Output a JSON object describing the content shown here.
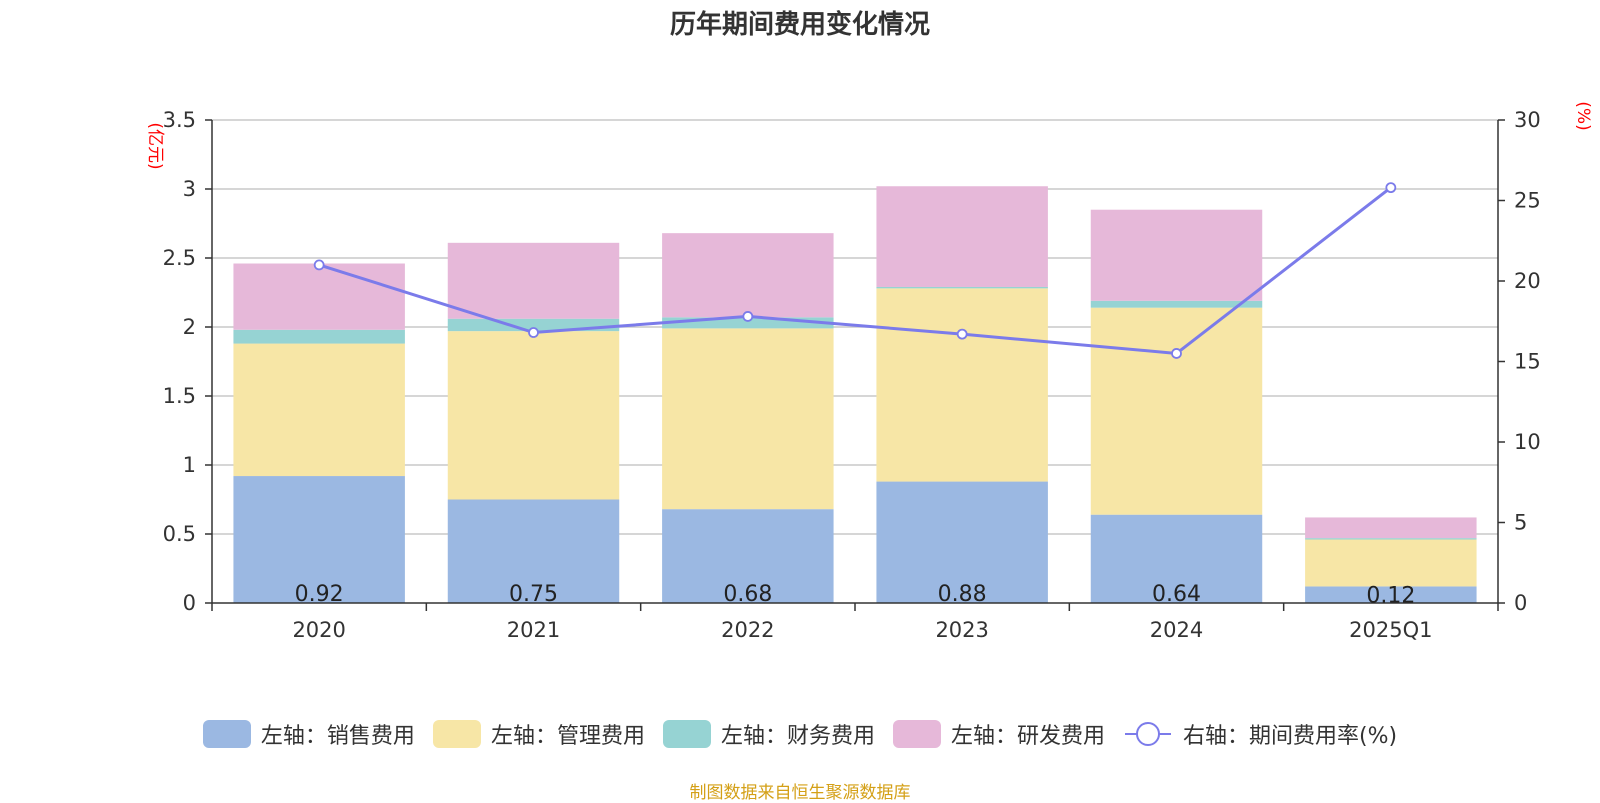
{
  "title": "历年期间费用变化情况",
  "source_note": "制图数据来自恒生聚源数据库",
  "colors": {
    "sales": "#9bb8e2",
    "admin": "#f7e6a6",
    "finance": "#96d3d3",
    "rd": "#e6b8d9",
    "rate": "#7b7bea",
    "unit": "#ff0000"
  },
  "chart_data": {
    "type": "bar",
    "stacked": true,
    "categories": [
      "2020",
      "2021",
      "2022",
      "2023",
      "2024",
      "2025Q1"
    ],
    "series": [
      {
        "name": "左轴：销售费用",
        "axis": "left",
        "values": [
          0.92,
          0.75,
          0.68,
          0.88,
          0.64,
          0.12
        ],
        "labels": [
          "0.92",
          "0.75",
          "0.68",
          "0.88",
          "0.64",
          "0.12"
        ]
      },
      {
        "name": "左轴：管理费用",
        "axis": "left",
        "values": [
          0.96,
          1.22,
          1.31,
          1.4,
          1.5,
          0.34
        ]
      },
      {
        "name": "左轴：财务费用",
        "axis": "left",
        "values": [
          0.1,
          0.09,
          0.08,
          0.01,
          0.05,
          0.01
        ]
      },
      {
        "name": "左轴：研发费用",
        "axis": "left",
        "values": [
          0.48,
          0.55,
          0.61,
          0.73,
          0.66,
          0.15
        ]
      },
      {
        "name": "右轴：期间费用率(%)",
        "axis": "right",
        "type": "line",
        "values": [
          21.0,
          16.8,
          17.8,
          16.7,
          15.5,
          25.8
        ]
      }
    ],
    "left_axis": {
      "unit": "(亿元)",
      "min": 0,
      "max": 3.5,
      "ticks": [
        "0",
        "0.5",
        "1",
        "1.5",
        "2",
        "2.5",
        "3",
        "3.5"
      ]
    },
    "right_axis": {
      "unit": "(%)",
      "min": 0,
      "max": 30,
      "ticks": [
        "0",
        "5",
        "10",
        "15",
        "20",
        "25",
        "30"
      ]
    },
    "grid": true,
    "legend_position": "bottom"
  }
}
